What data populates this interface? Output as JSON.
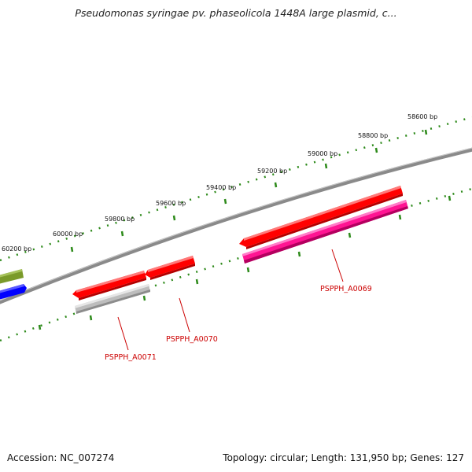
{
  "title": "Pseudomonas syringae pv. phaseolicola 1448A large plasmid, c...",
  "footer": {
    "accession": "Accession: NC_007274",
    "summary": "Topology: circular; Length: 131,950 bp; Genes: 127"
  },
  "ticks": [
    "58600 bp",
    "58800 bp",
    "59000 bp",
    "59200 bp",
    "59400 bp",
    "59600 bp",
    "59800 bp",
    "60000 bp",
    "60200 bp"
  ],
  "genes": [
    {
      "locus": "PSPPH_A0069",
      "color": "#ff1493"
    },
    {
      "locus": "PSPPH_A0070",
      "color": "#ff0000"
    },
    {
      "locus": "PSPPH_A0071",
      "color": "#b0b0b0"
    }
  ],
  "colors": {
    "backbone": "#777777",
    "tick_track": "#2d8a1a",
    "forward_red": "#ff0000",
    "reverse_green": "#7a9a2a",
    "reverse_blue": "#0000ff",
    "label": "#cc0000"
  }
}
